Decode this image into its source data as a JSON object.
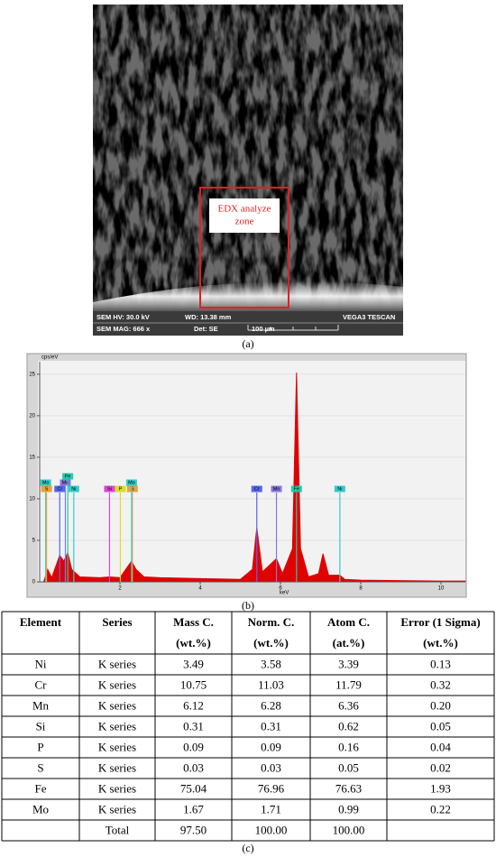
{
  "figure_a": {
    "zone_label": [
      "EDX analyze",
      "zone"
    ],
    "info": {
      "hv": "SEM HV: 30.0 kV",
      "wd": "WD: 13.38 mm",
      "brand": "VEGA3 TESCAN",
      "mag": "SEM MAG: 666 x",
      "det": "Det: SE",
      "scale": "100 µm"
    },
    "caption": "(a)"
  },
  "chart_data": {
    "type": "line",
    "caption": "(b)",
    "x_label": "keV",
    "y_label": "cps/eV",
    "xlim": [
      0,
      10.6
    ],
    "ylim": [
      0,
      26.5
    ],
    "xticks": [
      2,
      4,
      6,
      8,
      10
    ],
    "yticks": [
      0,
      5,
      10,
      15,
      20,
      25
    ],
    "series": [
      {
        "color": "#e00000",
        "x": [
          0.1,
          0.2,
          0.3,
          0.5,
          0.6,
          0.7,
          0.8,
          1.0,
          1.5,
          1.74,
          2.0,
          2.29,
          2.4,
          2.6,
          3,
          4,
          5,
          5.3,
          5.41,
          5.55,
          5.9,
          6.05,
          6.3,
          6.4,
          6.5,
          6.7,
          6.95,
          7.06,
          7.2,
          7.48,
          7.6,
          8,
          9,
          10,
          10.6
        ],
        "values": [
          0,
          1.5,
          0.5,
          3.2,
          2.5,
          3.5,
          1.5,
          0.6,
          0.5,
          0.6,
          0.5,
          2.5,
          1.5,
          0.6,
          0.5,
          0.4,
          0.3,
          1.5,
          6.5,
          1.2,
          2.8,
          1,
          4,
          25.2,
          4,
          0.6,
          1,
          3.4,
          0.8,
          0.8,
          0.3,
          0.2,
          0.15,
          0.1,
          0.1
        ]
      }
    ],
    "markers": [
      {
        "label": "Mo",
        "energy": 0.15,
        "color": "#33cccc"
      },
      {
        "label": "S",
        "energy": 0.17,
        "color": "#f0a030"
      },
      {
        "label": "Cr",
        "energy": 0.5,
        "color": "#5566ee"
      },
      {
        "label": "Mn",
        "energy": 0.64,
        "color": "#8877dd"
      },
      {
        "label": "Fe",
        "energy": 0.7,
        "color": "#22ccaa"
      },
      {
        "label": "Ni",
        "energy": 0.85,
        "color": "#33cccc"
      },
      {
        "label": "Si",
        "energy": 1.74,
        "color": "#dd44dd"
      },
      {
        "label": "P",
        "energy": 2.01,
        "color": "#dddd22"
      },
      {
        "label": "S",
        "energy": 2.31,
        "color": "#f0a030"
      },
      {
        "label": "Mo",
        "energy": 2.29,
        "color": "#33cccc"
      },
      {
        "label": "Cr",
        "energy": 5.41,
        "color": "#5566ee"
      },
      {
        "label": "Mn",
        "energy": 5.9,
        "color": "#8877dd"
      },
      {
        "label": "Fe",
        "energy": 6.4,
        "color": "#22ccaa"
      },
      {
        "label": "Ni",
        "energy": 7.48,
        "color": "#33cccc"
      }
    ]
  },
  "table": {
    "caption": "(c)",
    "header": [
      [
        "Element"
      ],
      [
        "Series"
      ],
      [
        "Mass C.",
        "(wt.%)"
      ],
      [
        "Norm. C.",
        "(wt.%)"
      ],
      [
        "Atom C.",
        "(at.%)"
      ],
      [
        "Error (1 Sigma)",
        "(wt.%)"
      ]
    ],
    "rows": [
      [
        "Ni",
        "K series",
        "3.49",
        "3.58",
        "3.39",
        "0.13"
      ],
      [
        "Cr",
        "K series",
        "10.75",
        "11.03",
        "11.79",
        "0.32"
      ],
      [
        "Mn",
        "K series",
        "6.12",
        "6.28",
        "6.36",
        "0.20"
      ],
      [
        "Si",
        "K series",
        "0.31",
        "0.31",
        "0.62",
        "0.05"
      ],
      [
        "P",
        "K series",
        "0.09",
        "0.09",
        "0.16",
        "0.04"
      ],
      [
        "S",
        "K series",
        "0.03",
        "0.03",
        "0.05",
        "0.02"
      ],
      [
        "Fe",
        "K series",
        "75.04",
        "76.96",
        "76.63",
        "1.93"
      ],
      [
        "Mo",
        "K series",
        "1.67",
        "1.71",
        "0.99",
        "0.22"
      ]
    ],
    "total": {
      "label": "Total",
      "values": [
        "97.50",
        "100.00",
        "100.00"
      ]
    }
  }
}
